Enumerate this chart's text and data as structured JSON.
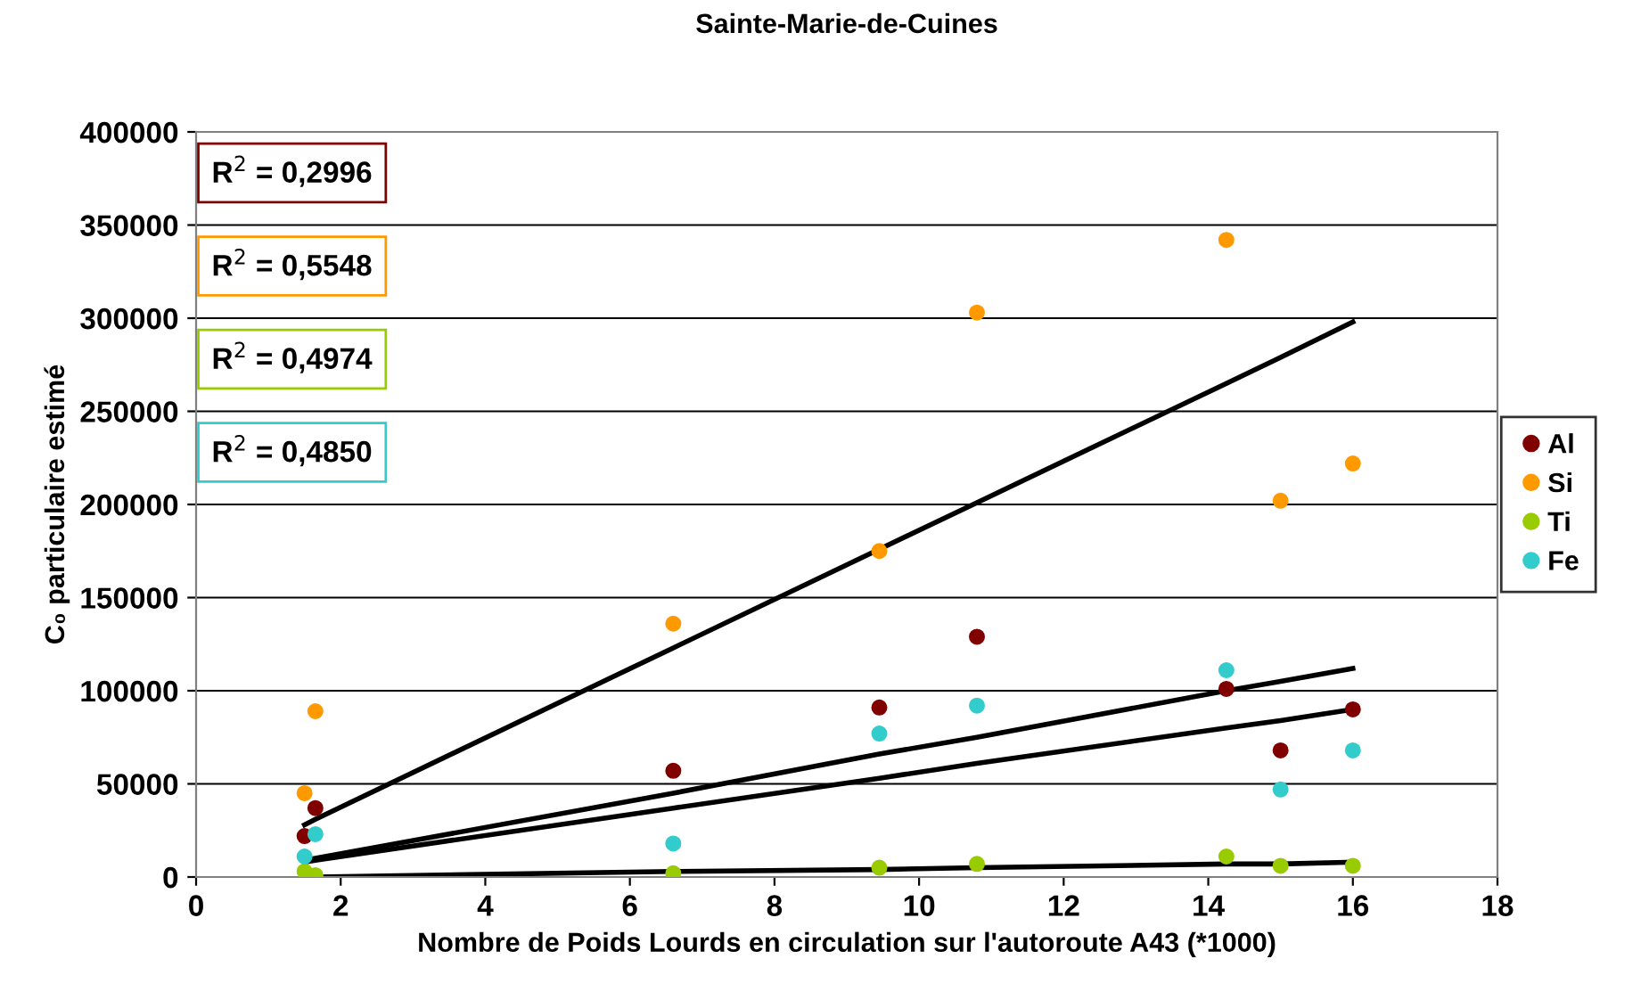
{
  "chart_data": {
    "type": "scatter",
    "title": "Sainte-Marie-de-Cuines",
    "xlabel": "Nombre de Poids Lourds en circulation sur l'autoroute A43 (*1000)",
    "ylabel": "C₀ particulaire estimé",
    "x": [
      1.5,
      1.65,
      6.6,
      9.45,
      10.8,
      14.25,
      15,
      16
    ],
    "series": [
      {
        "name": "Al",
        "color": "#800000",
        "values": [
          22000,
          37000,
          57000,
          91000,
          129000,
          101000,
          68000,
          90000
        ]
      },
      {
        "name": "Si",
        "color": "#ff9900",
        "values": [
          45000,
          89000,
          136000,
          175000,
          303000,
          342000,
          202000,
          222000
        ]
      },
      {
        "name": "Ti",
        "color": "#99cc00",
        "values": [
          3000,
          1000,
          2000,
          5000,
          7000,
          11000,
          6000,
          6000
        ]
      },
      {
        "name": "Fe",
        "color": "#33cccc",
        "values": [
          11000,
          23000,
          18000,
          77000,
          92000,
          111000,
          47000,
          68000
        ]
      },
      {
        "type": "line",
        "color": "#000000",
        "marker": "none",
        "values": [
          9000,
          10000,
          45000,
          66000,
          75000,
          100000,
          105000,
          112000
        ]
      },
      {
        "type": "line",
        "color": "#000000",
        "marker": "none",
        "values": [
          28000,
          31000,
          123000,
          176000,
          201000,
          265000,
          279000,
          298000
        ]
      },
      {
        "type": "line",
        "color": "#000000",
        "marker": "none",
        "values": [
          0,
          0,
          3000,
          4000,
          5000,
          7000,
          7000,
          8000
        ]
      },
      {
        "type": "line",
        "color": "#000000",
        "marker": "none",
        "values": [
          8000,
          9000,
          37000,
          53000,
          61000,
          80000,
          84000,
          90000
        ]
      }
    ],
    "annotations": [
      "R$^{2}$ = 0,2996",
      "R$^{2}$ = 0,5548",
      "R$^{2}$ = 0,4974",
      "R$^{2}$ = 0,4850"
    ],
    "xlim": [
      0,
      18
    ],
    "xticks": [
      0,
      2,
      4,
      6,
      8,
      10,
      12,
      14,
      16,
      18
    ],
    "ylim": [
      0,
      400000
    ],
    "yticks": [
      0,
      50000,
      100000,
      150000,
      200000,
      250000,
      300000,
      350000,
      400000
    ],
    "grid": "y",
    "legend": "right",
    "marker": "circle"
  }
}
